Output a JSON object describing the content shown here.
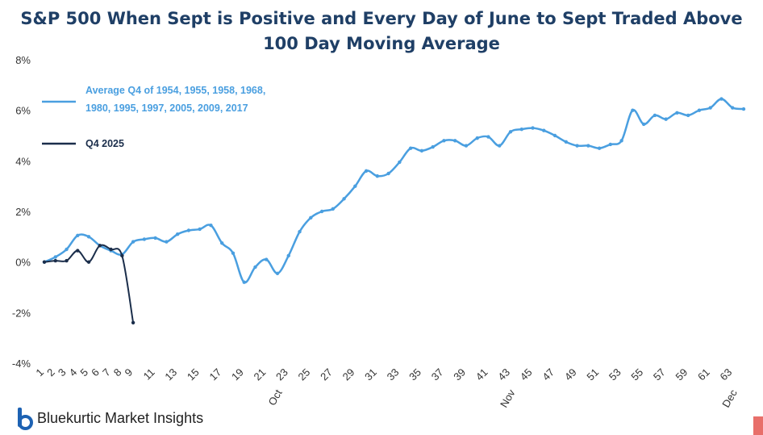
{
  "title_line1": "S&P 500 When Sept is Positive and Every Day of June to Sept Traded Above",
  "title_line2": "100 Day Moving Average",
  "brand": {
    "name": "Bluekurtic Market Insights",
    "icon": "bluekurtic-b-logo-icon",
    "color": "#1d62b3"
  },
  "colors": {
    "average": "#4a9fe0",
    "q4_2025": "#1b2e4b",
    "title": "#1f3f66",
    "corner_mark": "#e86f6a"
  },
  "chart_data": {
    "type": "line",
    "title": "S&P 500 When Sept is Positive and Every Day of June to Sept Traded Above 100 Day Moving Average",
    "xlabel": "",
    "ylabel": "",
    "ylim": [
      -4,
      8
    ],
    "yticks": [
      "8%",
      "6%",
      "4%",
      "2%",
      "0%",
      "-2%",
      "-4%"
    ],
    "ytick_values": [
      8,
      6,
      4,
      2,
      0,
      -2,
      -4
    ],
    "xlim": [
      1,
      64
    ],
    "xticks": [
      1,
      2,
      3,
      4,
      5,
      6,
      7,
      8,
      9,
      11,
      13,
      15,
      17,
      19,
      21,
      23,
      25,
      27,
      29,
      31,
      33,
      35,
      37,
      39,
      41,
      43,
      45,
      47,
      49,
      51,
      53,
      55,
      57,
      59,
      61,
      63
    ],
    "month_labels": [
      {
        "x": 22,
        "label": "Oct"
      },
      {
        "x": 43,
        "label": "Nov"
      },
      {
        "x": 63,
        "label": "Dec"
      }
    ],
    "grid": false,
    "legend_position": "top-left",
    "series": [
      {
        "name": "Average Q4 of 1954, 1955, 1958, 1968, 1980, 1995, 1997, 2005, 2009, 2017",
        "legend_lines": [
          "Average Q4 of 1954, 1955, 1958, 1968,",
          "1980, 1995, 1997, 2005, 2009, 2017"
        ],
        "color": "#4a9fe0",
        "x": [
          1,
          2,
          3,
          4,
          5,
          6,
          7,
          8,
          9,
          10,
          11,
          12,
          13,
          14,
          15,
          16,
          17,
          18,
          19,
          20,
          21,
          22,
          23,
          24,
          25,
          26,
          27,
          28,
          29,
          30,
          31,
          32,
          33,
          34,
          35,
          36,
          37,
          38,
          39,
          40,
          41,
          42,
          43,
          44,
          45,
          46,
          47,
          48,
          49,
          50,
          51,
          52,
          53,
          54,
          55,
          56,
          57,
          58,
          59,
          60,
          61,
          62,
          63,
          64
        ],
        "y": [
          0.0,
          0.2,
          0.5,
          1.05,
          1.0,
          0.65,
          0.45,
          0.3,
          0.8,
          0.9,
          0.95,
          0.8,
          1.1,
          1.25,
          1.3,
          1.45,
          0.75,
          0.35,
          -0.8,
          -0.2,
          0.1,
          -0.45,
          0.25,
          1.2,
          1.75,
          2.0,
          2.1,
          2.5,
          3.0,
          3.6,
          3.4,
          3.5,
          3.95,
          4.5,
          4.4,
          4.55,
          4.8,
          4.8,
          4.6,
          4.9,
          4.95,
          4.6,
          5.15,
          5.25,
          5.3,
          5.2,
          5.0,
          4.75,
          4.6,
          4.6,
          4.5,
          4.65,
          4.8,
          6.0,
          5.45,
          5.8,
          5.65,
          5.9,
          5.8,
          6.0,
          6.1,
          6.45,
          6.1,
          6.05
        ]
      },
      {
        "name": "Q4 2025",
        "legend_lines": [
          "Q4 2025"
        ],
        "color": "#1b2e4b",
        "x": [
          1,
          2,
          3,
          4,
          5,
          6,
          7,
          8,
          9
        ],
        "y": [
          0.0,
          0.05,
          0.05,
          0.45,
          0.0,
          0.65,
          0.5,
          0.25,
          -2.4
        ]
      }
    ]
  }
}
